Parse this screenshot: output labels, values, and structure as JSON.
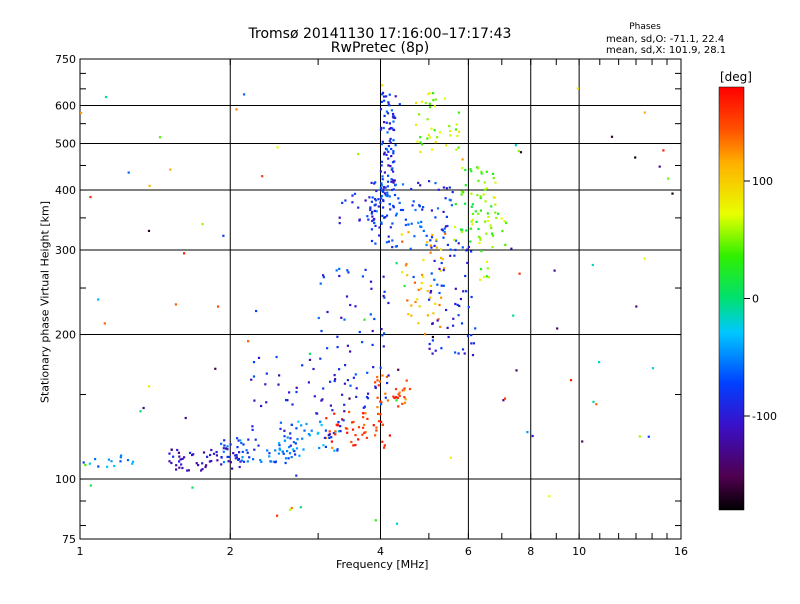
{
  "header": {
    "title": "Tromsø 20141130 17:16:00–17:17:43",
    "subtitle": "RwPretec (8p)"
  },
  "stats": {
    "heading": "Phases",
    "line_o": "mean, sd,O: -71.1, 22.4",
    "line_x": "mean, sd,X: 101.9, 28.1"
  },
  "colorbar": {
    "unit": "[deg]",
    "range": [
      -180,
      180
    ],
    "ticks": [
      100,
      0,
      -100
    ],
    "tick_labels": [
      "100",
      "0",
      "-100"
    ],
    "palette": "rainbow: black (low) → purple → blue → cyan → green → yellow → orange → red (high)"
  },
  "chart_data": {
    "type": "scatter",
    "title": "Tromsø 20141130 17:16:00–17:17:43",
    "subtitle": "RwPretec (8p)",
    "xlabel": "Frequency [MHz]",
    "ylabel": "Stationary phase Virtual Height [km]",
    "x_scale": "log",
    "y_scale": "log",
    "xlim": [
      1,
      16
    ],
    "ylim": [
      75,
      750
    ],
    "x_ticks": [
      1,
      2,
      4,
      6,
      8,
      10,
      16
    ],
    "x_tick_labels": [
      "1",
      "2",
      "4",
      "6",
      "8",
      "10",
      "16"
    ],
    "y_ticks": [
      75,
      100,
      200,
      300,
      400,
      500,
      600,
      750
    ],
    "y_tick_labels": [
      "75",
      "100",
      "200",
      "300",
      "400",
      "500",
      "600",
      "750"
    ],
    "grid_x": [
      2,
      4,
      6,
      8,
      10
    ],
    "grid_y": [
      100,
      200,
      300,
      400,
      500,
      600
    ],
    "color_variable": "phase [deg]",
    "clusters": [
      {
        "x_range": [
          1.0,
          1.3
        ],
        "y_range": [
          106,
          112
        ],
        "phase": -50,
        "count": 14
      },
      {
        "x_range": [
          1.5,
          2.1
        ],
        "y_range": [
          104,
          116
        ],
        "phase": -110,
        "count": 55
      },
      {
        "x_range": [
          1.9,
          2.7
        ],
        "y_range": [
          108,
          122
        ],
        "phase": -70,
        "count": 60
      },
      {
        "x_range": [
          2.5,
          3.3
        ],
        "y_range": [
          114,
          132
        ],
        "phase": -55,
        "count": 40
      },
      {
        "x_range": [
          3.1,
          4.2
        ],
        "y_range": [
          116,
          138
        ],
        "phase": 155,
        "count": 48
      },
      {
        "x_range": [
          3.9,
          4.6
        ],
        "y_range": [
          135,
          165
        ],
        "phase": 150,
        "count": 30
      },
      {
        "x_range": [
          3.8,
          5.6
        ],
        "y_range": [
          300,
          420
        ],
        "phase": -80,
        "count": 110
      },
      {
        "x_range": [
          4.0,
          4.3
        ],
        "y_range": [
          380,
          640
        ],
        "phase": -85,
        "count": 85
      },
      {
        "x_range": [
          4.4,
          5.4
        ],
        "y_range": [
          200,
          330
        ],
        "phase": 110,
        "count": 45
      },
      {
        "x_range": [
          5.0,
          6.3
        ],
        "y_range": [
          180,
          320
        ],
        "phase": -90,
        "count": 60
      },
      {
        "x_range": [
          5.6,
          6.8
        ],
        "y_range": [
          310,
          450
        ],
        "phase": 40,
        "count": 50
      },
      {
        "x_range": [
          6.1,
          7.2
        ],
        "y_range": [
          260,
          420
        ],
        "phase": 55,
        "count": 30
      },
      {
        "x_range": [
          3.0,
          4.2
        ],
        "y_range": [
          140,
          280
        ],
        "phase": -85,
        "count": 70
      },
      {
        "x_range": [
          2.2,
          3.4
        ],
        "y_range": [
          120,
          180
        ],
        "phase": -95,
        "count": 45
      },
      {
        "x_range": [
          3.3,
          4.1
        ],
        "y_range": [
          330,
          400
        ],
        "phase": -85,
        "count": 30
      },
      {
        "x_range": [
          4.7,
          5.8
        ],
        "y_range": [
          480,
          640
        ],
        "phase": 60,
        "count": 40
      },
      {
        "x_range": [
          1.0,
          16.0
        ],
        "y_range": [
          80,
          700
        ],
        "phase": "mixed",
        "count": 90
      }
    ]
  }
}
